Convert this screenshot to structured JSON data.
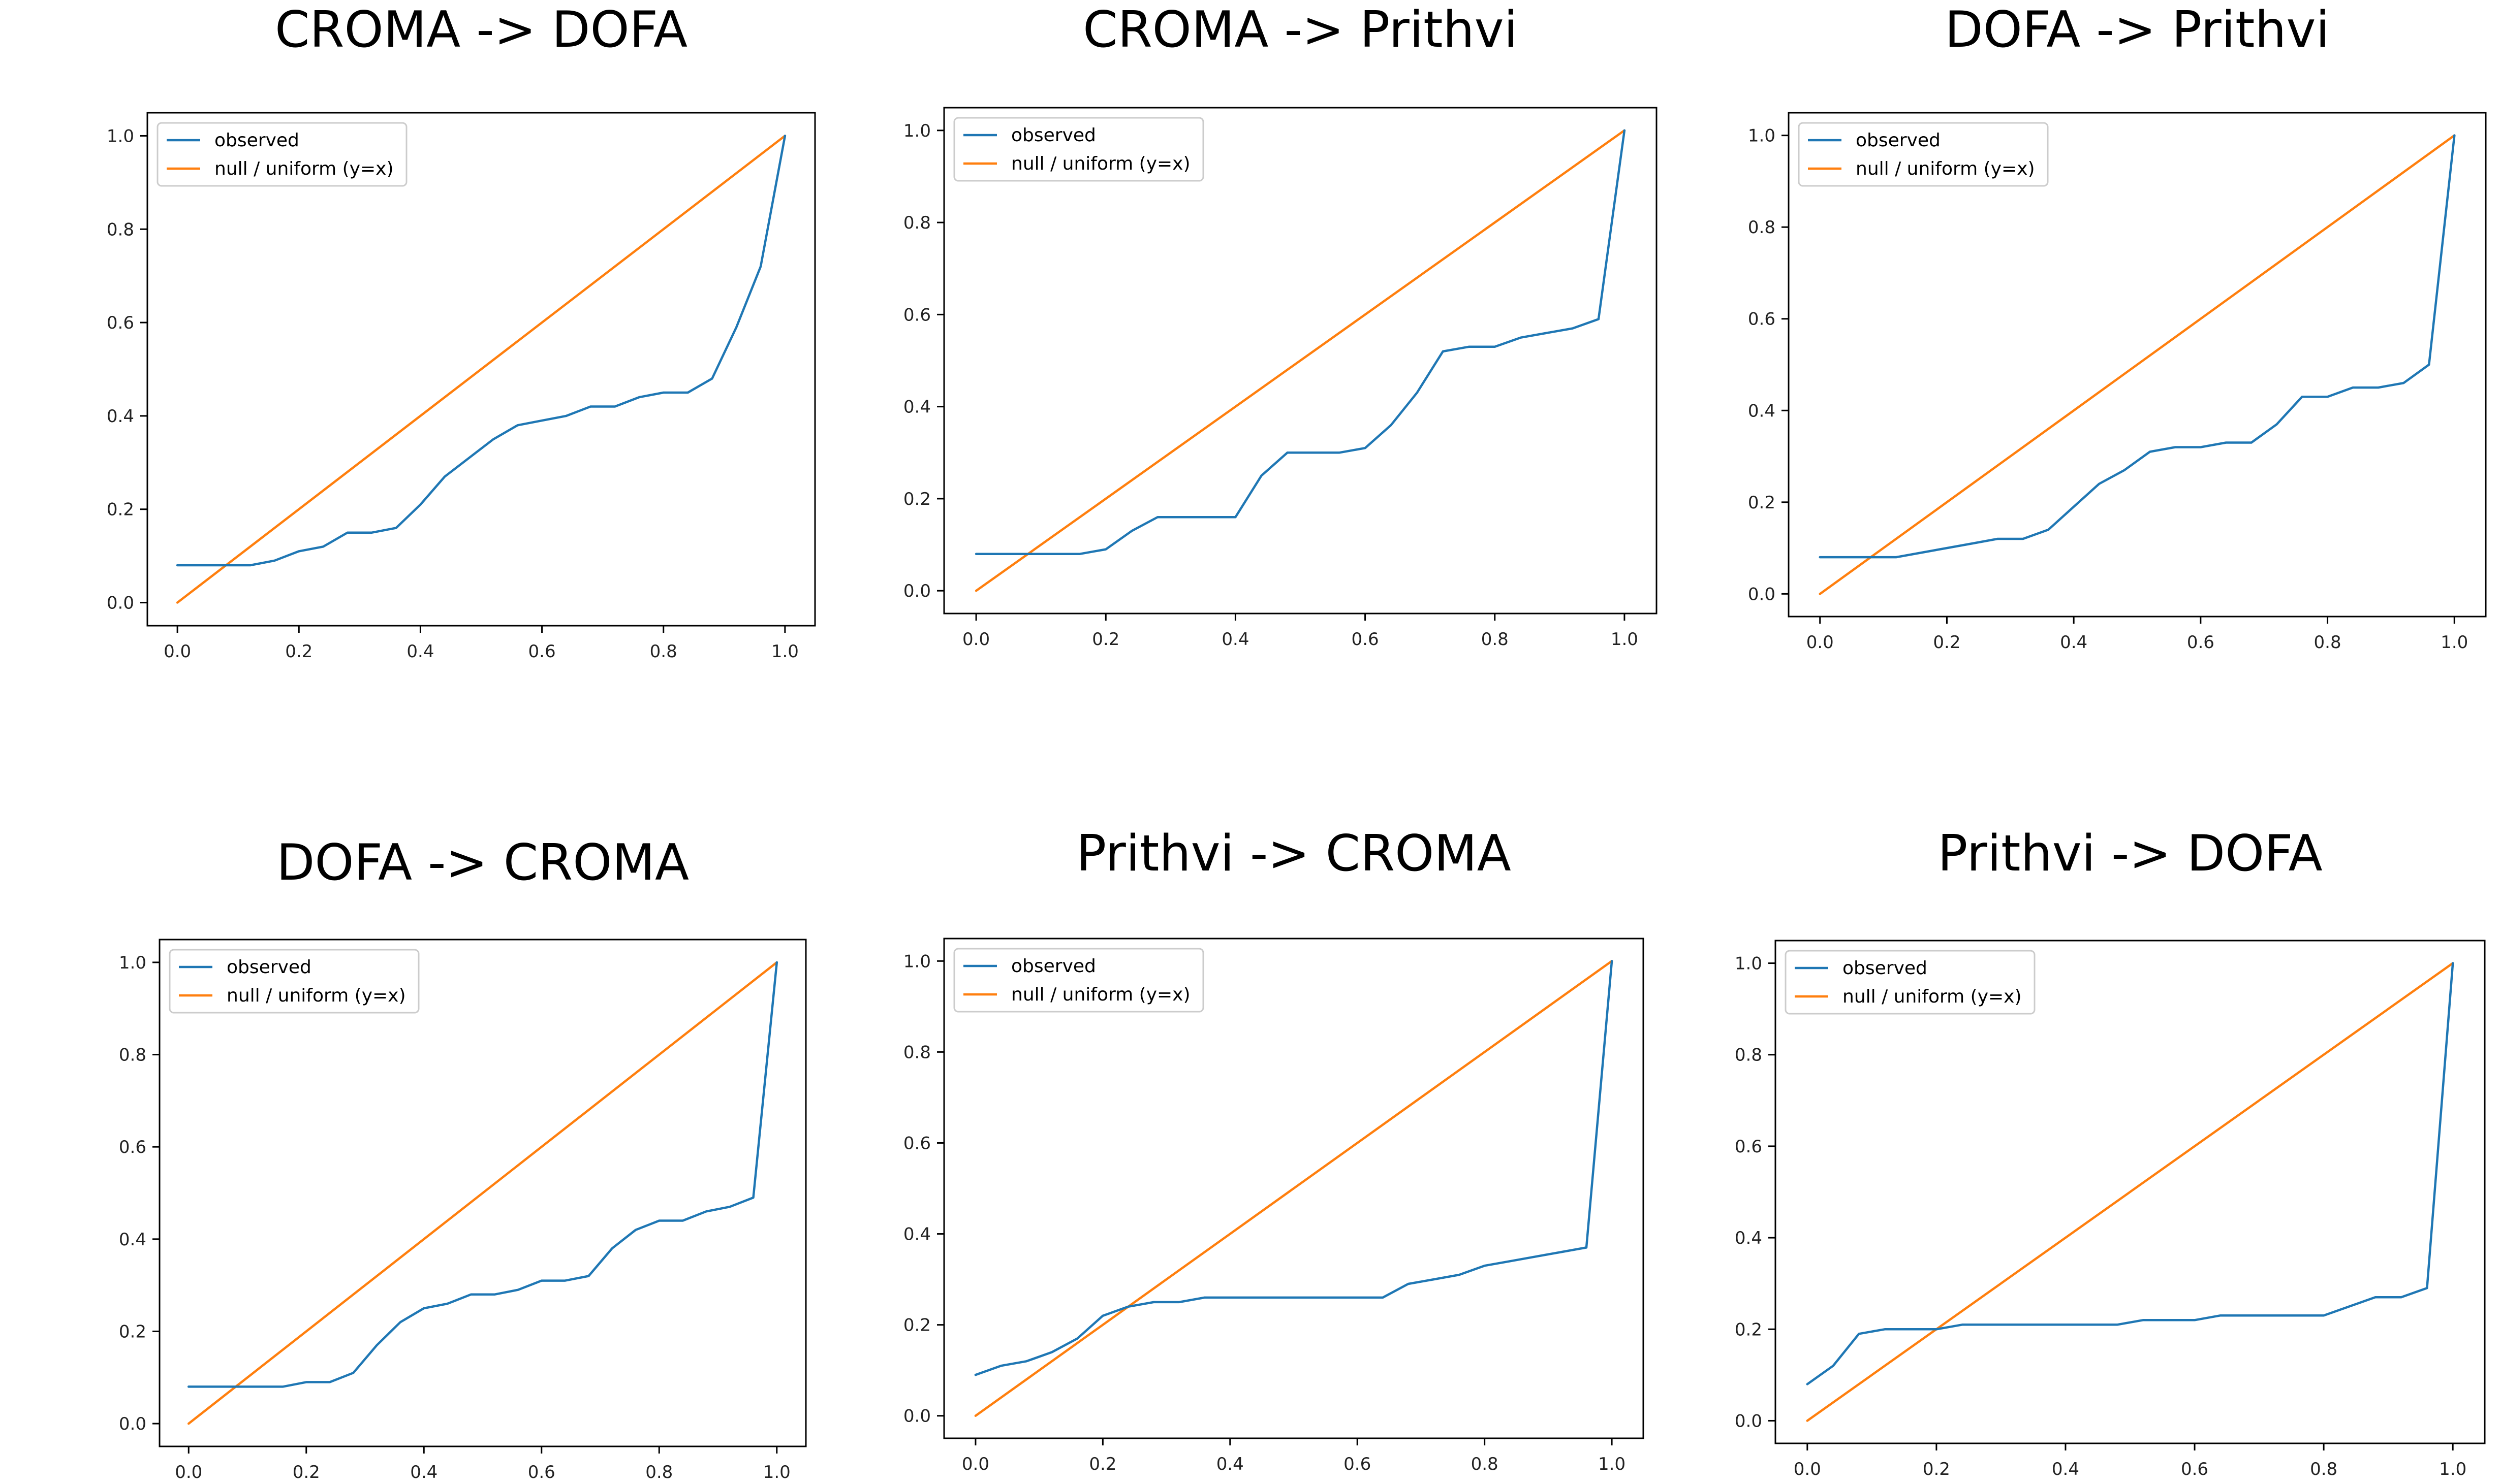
{
  "chart_data": [
    {
      "type": "line",
      "title": "CROMA -> DOFA",
      "xlim": [
        0,
        1
      ],
      "ylim": [
        0,
        1
      ],
      "xticks": [
        "0.0",
        "0.2",
        "0.4",
        "0.6",
        "0.8",
        "1.0"
      ],
      "yticks": [
        "0.0",
        "0.2",
        "0.4",
        "0.6",
        "0.8",
        "1.0"
      ],
      "legend_position": "upper-left",
      "series": [
        {
          "name": "observed",
          "color": "#1f77b4",
          "x": [
            0.0,
            0.04,
            0.08,
            0.12,
            0.16,
            0.2,
            0.24,
            0.28,
            0.32,
            0.36,
            0.4,
            0.44,
            0.48,
            0.52,
            0.56,
            0.6,
            0.64,
            0.68,
            0.72,
            0.76,
            0.8,
            0.84,
            0.88,
            0.92,
            0.96,
            1.0
          ],
          "y": [
            0.08,
            0.08,
            0.08,
            0.08,
            0.09,
            0.11,
            0.12,
            0.15,
            0.15,
            0.16,
            0.21,
            0.27,
            0.31,
            0.35,
            0.38,
            0.39,
            0.4,
            0.42,
            0.42,
            0.44,
            0.45,
            0.45,
            0.48,
            0.59,
            0.72,
            1.0
          ]
        },
        {
          "name": "null / uniform (y=x)",
          "color": "#ff7f0e",
          "x": [
            0,
            1
          ],
          "y": [
            0,
            1
          ]
        }
      ]
    },
    {
      "type": "line",
      "title": "CROMA -> Prithvi",
      "xlim": [
        0,
        1
      ],
      "ylim": [
        0,
        1
      ],
      "xticks": [
        "0.0",
        "0.2",
        "0.4",
        "0.6",
        "0.8",
        "1.0"
      ],
      "yticks": [
        "0.0",
        "0.2",
        "0.4",
        "0.6",
        "0.8",
        "1.0"
      ],
      "legend_position": "upper-left",
      "series": [
        {
          "name": "observed",
          "color": "#1f77b4",
          "x": [
            0.0,
            0.04,
            0.08,
            0.12,
            0.16,
            0.2,
            0.24,
            0.28,
            0.32,
            0.36,
            0.4,
            0.44,
            0.48,
            0.52,
            0.56,
            0.6,
            0.64,
            0.68,
            0.72,
            0.76,
            0.8,
            0.84,
            0.88,
            0.92,
            0.96,
            1.0
          ],
          "y": [
            0.08,
            0.08,
            0.08,
            0.08,
            0.08,
            0.09,
            0.13,
            0.16,
            0.16,
            0.16,
            0.16,
            0.25,
            0.3,
            0.3,
            0.3,
            0.31,
            0.36,
            0.43,
            0.52,
            0.53,
            0.53,
            0.55,
            0.56,
            0.57,
            0.59,
            1.0
          ]
        },
        {
          "name": "null / uniform (y=x)",
          "color": "#ff7f0e",
          "x": [
            0,
            1
          ],
          "y": [
            0,
            1
          ]
        }
      ]
    },
    {
      "type": "line",
      "title": "DOFA -> Prithvi",
      "xlim": [
        0,
        1
      ],
      "ylim": [
        0,
        1
      ],
      "xticks": [
        "0.0",
        "0.2",
        "0.4",
        "0.6",
        "0.8",
        "1.0"
      ],
      "yticks": [
        "0.0",
        "0.2",
        "0.4",
        "0.6",
        "0.8",
        "1.0"
      ],
      "legend_position": "upper-left",
      "series": [
        {
          "name": "observed",
          "color": "#1f77b4",
          "x": [
            0.0,
            0.04,
            0.08,
            0.12,
            0.16,
            0.2,
            0.24,
            0.28,
            0.32,
            0.36,
            0.4,
            0.44,
            0.48,
            0.52,
            0.56,
            0.6,
            0.64,
            0.68,
            0.72,
            0.76,
            0.8,
            0.84,
            0.88,
            0.92,
            0.96,
            1.0
          ],
          "y": [
            0.08,
            0.08,
            0.08,
            0.08,
            0.09,
            0.1,
            0.11,
            0.12,
            0.12,
            0.14,
            0.19,
            0.24,
            0.27,
            0.31,
            0.32,
            0.32,
            0.33,
            0.33,
            0.37,
            0.43,
            0.43,
            0.45,
            0.45,
            0.46,
            0.5,
            1.0
          ]
        },
        {
          "name": "null / uniform (y=x)",
          "color": "#ff7f0e",
          "x": [
            0,
            1
          ],
          "y": [
            0,
            1
          ]
        }
      ]
    },
    {
      "type": "line",
      "title": "DOFA -> CROMA",
      "xlim": [
        0,
        1
      ],
      "ylim": [
        0,
        1
      ],
      "xticks": [
        "0.0",
        "0.2",
        "0.4",
        "0.6",
        "0.8",
        "1.0"
      ],
      "yticks": [
        "0.0",
        "0.2",
        "0.4",
        "0.6",
        "0.8",
        "1.0"
      ],
      "legend_position": "upper-left",
      "series": [
        {
          "name": "observed",
          "color": "#1f77b4",
          "x": [
            0.0,
            0.04,
            0.08,
            0.12,
            0.16,
            0.2,
            0.24,
            0.28,
            0.32,
            0.36,
            0.4,
            0.44,
            0.48,
            0.52,
            0.56,
            0.6,
            0.64,
            0.68,
            0.72,
            0.76,
            0.8,
            0.84,
            0.88,
            0.92,
            0.96,
            1.0
          ],
          "y": [
            0.08,
            0.08,
            0.08,
            0.08,
            0.08,
            0.09,
            0.09,
            0.11,
            0.17,
            0.22,
            0.25,
            0.26,
            0.28,
            0.28,
            0.29,
            0.31,
            0.31,
            0.32,
            0.38,
            0.42,
            0.44,
            0.44,
            0.46,
            0.47,
            0.49,
            1.0
          ]
        },
        {
          "name": "null / uniform (y=x)",
          "color": "#ff7f0e",
          "x": [
            0,
            1
          ],
          "y": [
            0,
            1
          ]
        }
      ]
    },
    {
      "type": "line",
      "title": "Prithvi -> CROMA",
      "xlim": [
        0,
        1
      ],
      "ylim": [
        0,
        1
      ],
      "xticks": [
        "0.0",
        "0.2",
        "0.4",
        "0.6",
        "0.8",
        "1.0"
      ],
      "yticks": [
        "0.0",
        "0.2",
        "0.4",
        "0.6",
        "0.8",
        "1.0"
      ],
      "legend_position": "upper-left",
      "series": [
        {
          "name": "observed",
          "color": "#1f77b4",
          "x": [
            0.0,
            0.04,
            0.08,
            0.12,
            0.16,
            0.2,
            0.24,
            0.28,
            0.32,
            0.36,
            0.4,
            0.44,
            0.48,
            0.52,
            0.56,
            0.6,
            0.64,
            0.68,
            0.72,
            0.76,
            0.8,
            0.84,
            0.88,
            0.92,
            0.96,
            1.0
          ],
          "y": [
            0.09,
            0.11,
            0.12,
            0.14,
            0.17,
            0.22,
            0.24,
            0.25,
            0.25,
            0.26,
            0.26,
            0.26,
            0.26,
            0.26,
            0.26,
            0.26,
            0.26,
            0.29,
            0.3,
            0.31,
            0.33,
            0.34,
            0.35,
            0.36,
            0.37,
            1.0
          ]
        },
        {
          "name": "null / uniform (y=x)",
          "color": "#ff7f0e",
          "x": [
            0,
            1
          ],
          "y": [
            0,
            1
          ]
        }
      ]
    },
    {
      "type": "line",
      "title": "Prithvi -> DOFA",
      "xlim": [
        0,
        1
      ],
      "ylim": [
        0,
        1
      ],
      "xticks": [
        "0.0",
        "0.2",
        "0.4",
        "0.6",
        "0.8",
        "1.0"
      ],
      "yticks": [
        "0.0",
        "0.2",
        "0.4",
        "0.6",
        "0.8",
        "1.0"
      ],
      "legend_position": "upper-left",
      "series": [
        {
          "name": "observed",
          "color": "#1f77b4",
          "x": [
            0.0,
            0.04,
            0.08,
            0.12,
            0.16,
            0.2,
            0.24,
            0.28,
            0.32,
            0.36,
            0.4,
            0.44,
            0.48,
            0.52,
            0.56,
            0.6,
            0.64,
            0.68,
            0.72,
            0.76,
            0.8,
            0.84,
            0.88,
            0.92,
            0.96,
            1.0
          ],
          "y": [
            0.08,
            0.12,
            0.19,
            0.2,
            0.2,
            0.2,
            0.21,
            0.21,
            0.21,
            0.21,
            0.21,
            0.21,
            0.21,
            0.22,
            0.22,
            0.22,
            0.23,
            0.23,
            0.23,
            0.23,
            0.23,
            0.25,
            0.27,
            0.27,
            0.29,
            1.0
          ]
        },
        {
          "name": "null / uniform (y=x)",
          "color": "#ff7f0e",
          "x": [
            0,
            1
          ],
          "y": [
            0,
            1
          ]
        }
      ]
    }
  ]
}
